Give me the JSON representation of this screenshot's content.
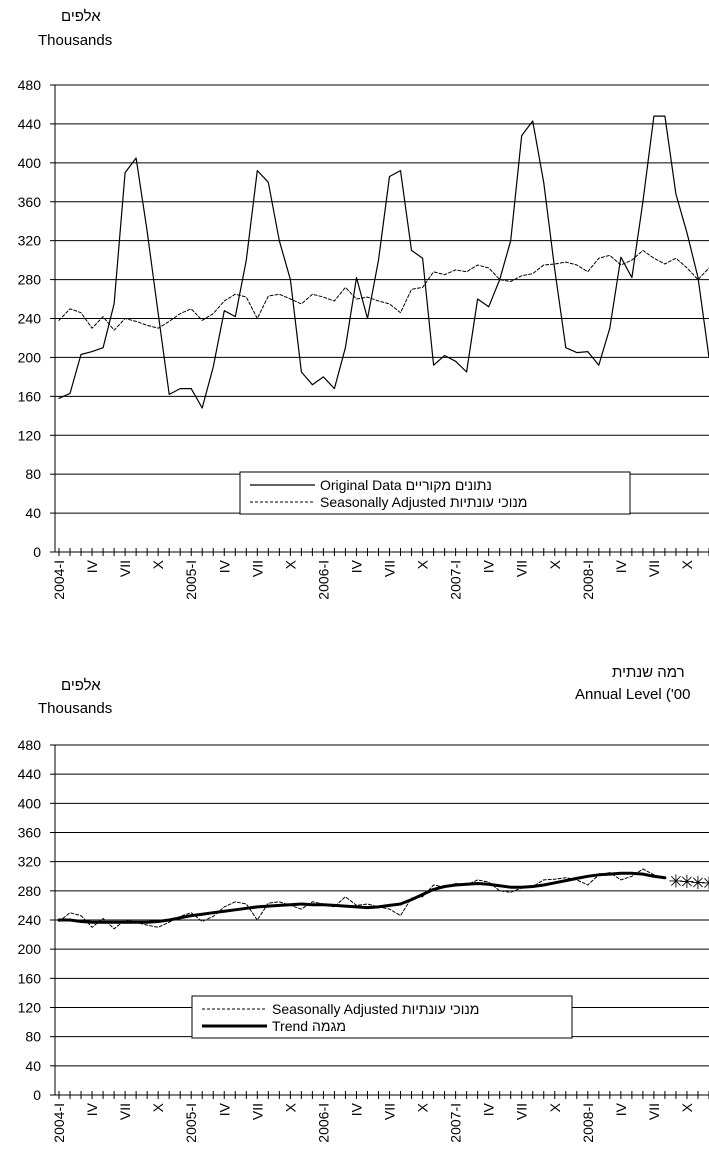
{
  "chart_data": [
    {
      "type": "line",
      "unit_label_he": "אלפים",
      "unit_label_en": "Thousands",
      "ylim": [
        0,
        480
      ],
      "yticks": [
        0,
        40,
        80,
        120,
        160,
        200,
        240,
        280,
        320,
        360,
        400,
        440,
        480
      ],
      "grid": true,
      "legend_position": "bottom-center",
      "x": [
        "2004-I",
        "II",
        "III",
        "IV",
        "V",
        "VI",
        "VII",
        "VIII",
        "IX",
        "X",
        "XI",
        "XII",
        "2005-I",
        "II",
        "III",
        "IV",
        "V",
        "VI",
        "VII",
        "VIII",
        "IX",
        "X",
        "XI",
        "XII",
        "2006-I",
        "II",
        "III",
        "IV",
        "V",
        "VI",
        "VII",
        "VIII",
        "IX",
        "X",
        "XI",
        "XII",
        "2007-I",
        "II",
        "III",
        "IV",
        "V",
        "VI",
        "VII",
        "VIII",
        "IX",
        "X",
        "XI",
        "XII",
        "2008-I",
        "II",
        "III",
        "IV",
        "V",
        "VI",
        "VII",
        "VIII",
        "IX",
        "X",
        "XI",
        "XII"
      ],
      "xtick_labels": [
        "2004-I",
        "IV",
        "VII",
        "X",
        "2005-I",
        "IV",
        "VII",
        "X",
        "2006-I",
        "IV",
        "VII",
        "X",
        "2007-I",
        "IV",
        "VII",
        "X",
        "2008-I",
        "IV",
        "VII",
        "X"
      ],
      "series": [
        {
          "name": "Original Data  נתונים מקוריים",
          "style": "solid",
          "values": [
            158,
            163,
            203,
            206,
            210,
            255,
            390,
            405,
            330,
            245,
            162,
            168,
            168,
            148,
            190,
            248,
            242,
            300,
            392,
            380,
            320,
            280,
            185,
            172,
            180,
            168,
            210,
            282,
            240,
            300,
            386,
            392,
            310,
            302,
            192,
            202,
            196,
            185,
            260,
            252,
            280,
            320,
            428,
            443,
            380,
            290,
            210,
            205,
            206,
            192,
            230,
            303,
            282,
            360,
            448,
            448,
            368,
            328,
            282,
            200
          ]
        },
        {
          "name": "Seasonally Adjusted מנוכי עונתיות",
          "style": "dashed",
          "values": [
            238,
            250,
            246,
            230,
            242,
            228,
            240,
            237,
            233,
            230,
            237,
            245,
            250,
            238,
            245,
            258,
            265,
            262,
            240,
            263,
            265,
            260,
            255,
            265,
            262,
            258,
            272,
            260,
            262,
            258,
            255,
            246,
            270,
            272,
            288,
            285,
            290,
            288,
            295,
            292,
            280,
            278,
            284,
            286,
            295,
            296,
            298,
            295,
            288,
            302,
            305,
            295,
            300,
            310,
            302,
            296,
            302,
            292,
            280,
            292
          ]
        }
      ]
    },
    {
      "type": "line",
      "unit_label_he": "אלפים",
      "unit_label_en": "Thousands",
      "right_label_he": "רמה שנתית",
      "right_label_en": "Annual Level ('00",
      "ylim": [
        0,
        480
      ],
      "yticks": [
        0,
        40,
        80,
        120,
        160,
        200,
        240,
        280,
        320,
        360,
        400,
        440,
        480
      ],
      "grid": true,
      "legend_position": "bottom-center",
      "x": [
        "2004-I",
        "II",
        "III",
        "IV",
        "V",
        "VI",
        "VII",
        "VIII",
        "IX",
        "X",
        "XI",
        "XII",
        "2005-I",
        "II",
        "III",
        "IV",
        "V",
        "VI",
        "VII",
        "VIII",
        "IX",
        "X",
        "XI",
        "XII",
        "2006-I",
        "II",
        "III",
        "IV",
        "V",
        "VI",
        "VII",
        "VIII",
        "IX",
        "X",
        "XI",
        "XII",
        "2007-I",
        "II",
        "III",
        "IV",
        "V",
        "VI",
        "VII",
        "VIII",
        "IX",
        "X",
        "XI",
        "XII",
        "2008-I",
        "II",
        "III",
        "IV",
        "V",
        "VI",
        "VII",
        "VIII",
        "IX",
        "X",
        "XI",
        "XII"
      ],
      "xtick_labels": [
        "2004-I",
        "IV",
        "VII",
        "X",
        "2005-I",
        "IV",
        "VII",
        "X",
        "2006-I",
        "IV",
        "VII",
        "X",
        "2007-I",
        "IV",
        "VII",
        "X",
        "2008-I",
        "IV",
        "VII",
        "X"
      ],
      "series": [
        {
          "name": "Seasonally Adjusted מנוכי עונתיות",
          "style": "dashed",
          "values": [
            238,
            250,
            246,
            230,
            242,
            228,
            240,
            237,
            233,
            230,
            237,
            245,
            250,
            238,
            245,
            258,
            265,
            262,
            240,
            263,
            265,
            260,
            255,
            265,
            262,
            258,
            272,
            260,
            262,
            258,
            255,
            246,
            270,
            272,
            288,
            285,
            290,
            288,
            295,
            292,
            280,
            278,
            284,
            286,
            295,
            296,
            298,
            295,
            288,
            302,
            305,
            295,
            300,
            310,
            302,
            296,
            null,
            null,
            null,
            null
          ]
        },
        {
          "name": "Trend מגמה",
          "style": "bold",
          "values": [
            240,
            240,
            238,
            237,
            237,
            237,
            237,
            237,
            237,
            238,
            240,
            243,
            246,
            248,
            250,
            252,
            254,
            256,
            258,
            259,
            260,
            261,
            262,
            261,
            261,
            260,
            259,
            258,
            257,
            258,
            260,
            262,
            268,
            275,
            282,
            286,
            288,
            289,
            290,
            289,
            287,
            285,
            285,
            286,
            288,
            291,
            294,
            297,
            300,
            302,
            303,
            304,
            304,
            303,
            300,
            298,
            null,
            null,
            null,
            null
          ]
        },
        {
          "name": "",
          "style": "asterisk",
          "values": [
            null,
            null,
            null,
            null,
            null,
            null,
            null,
            null,
            null,
            null,
            null,
            null,
            null,
            null,
            null,
            null,
            null,
            null,
            null,
            null,
            null,
            null,
            null,
            null,
            null,
            null,
            null,
            null,
            null,
            null,
            null,
            null,
            null,
            null,
            null,
            null,
            null,
            null,
            null,
            null,
            null,
            null,
            null,
            null,
            null,
            null,
            null,
            null,
            null,
            null,
            null,
            null,
            null,
            null,
            null,
            null,
            293,
            292,
            291,
            290
          ]
        }
      ]
    }
  ]
}
